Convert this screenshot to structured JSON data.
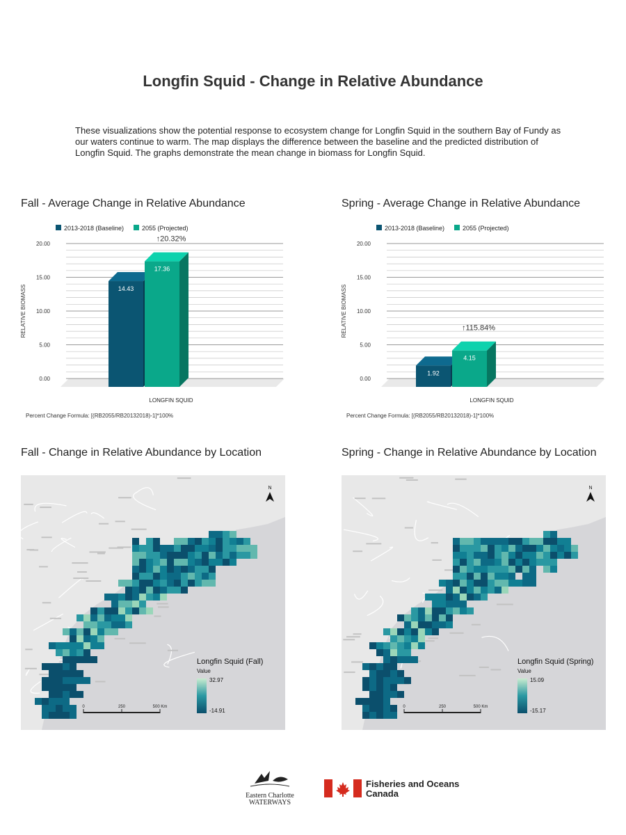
{
  "page": {
    "title": "Longfin Squid - Change in Relative Abundance",
    "intro": "These visualizations show the potential response to ecosystem change for Longfin Squid in the southern Bay of Fundy as our waters continue to warm. The map displays the difference between the baseline and the predicted distribution of Longfin Squid.  The graphs demonstrate the mean change in biomass for Longfin Squid."
  },
  "colors": {
    "baseline": "#0b5572",
    "projected": "#0aa88a"
  },
  "chart_data": [
    {
      "type": "bar",
      "title": "Fall - Average Change in Relative Abundance",
      "categories": [
        "LONGFIN SQUID"
      ],
      "series": [
        {
          "name": "2013-2018 (Baseline)",
          "values": [
            14.43
          ],
          "labels": [
            "14.43"
          ]
        },
        {
          "name": "2055 (Projected)",
          "values": [
            17.36
          ],
          "labels": [
            "17.36"
          ]
        }
      ],
      "annotation": "↑20.32%",
      "ylabel": "RELATIVE BIOMASS",
      "ylim": [
        0,
        20
      ],
      "yticks": [
        "0.00",
        "5.00",
        "10.00",
        "15.00",
        "20.00"
      ],
      "yticks_values": [
        0,
        5,
        10,
        15,
        20
      ],
      "legend_position": "top-left",
      "grid": true,
      "footnote": "Percent Change Formula: [(RB2055/RB20132018)-1]*100%"
    },
    {
      "type": "bar",
      "title": "Spring - Average Change in Relative Abundance",
      "categories": [
        "LONGFIN SQUID"
      ],
      "series": [
        {
          "name": "2013-2018 (Baseline)",
          "values": [
            1.92
          ],
          "labels": [
            "1.92"
          ]
        },
        {
          "name": "2055 (Projected)",
          "values": [
            4.15
          ],
          "labels": [
            "4.15"
          ]
        }
      ],
      "annotation": "↑115.84%",
      "ylabel": "RELATIVE BIOMASS",
      "ylim": [
        0,
        20
      ],
      "yticks": [
        "0.00",
        "5.00",
        "10.00",
        "15.00",
        "20.00"
      ],
      "yticks_values": [
        0,
        5,
        10,
        15,
        20
      ],
      "legend_position": "top-left",
      "grid": true,
      "footnote": "Percent Change Formula: [(RB2055/RB20132018)-1]*100%"
    }
  ],
  "maps": [
    {
      "title": "Fall - Change in Relative Abundance by Location",
      "legend_title": "Longfin Squid (Fall)",
      "legend_value": "Value",
      "max": "32.97",
      "min": "-14.91",
      "scale": [
        "0",
        "250",
        "500 Km"
      ],
      "north": "N"
    },
    {
      "title": "Spring - Change in Relative Abundance by Location",
      "legend_title": "Longfin Squid (Spring)",
      "legend_value": "Value",
      "max": "15.09",
      "min": "-15.17",
      "scale": [
        "0",
        "250",
        "500 Km"
      ],
      "north": "N"
    }
  ],
  "footer": {
    "logo1_line1": "Eastern Charlotte",
    "logo1_line2": "WATERWAYS",
    "logo2_line1": "Fisheries and Oceans",
    "logo2_line2": "Canada"
  }
}
